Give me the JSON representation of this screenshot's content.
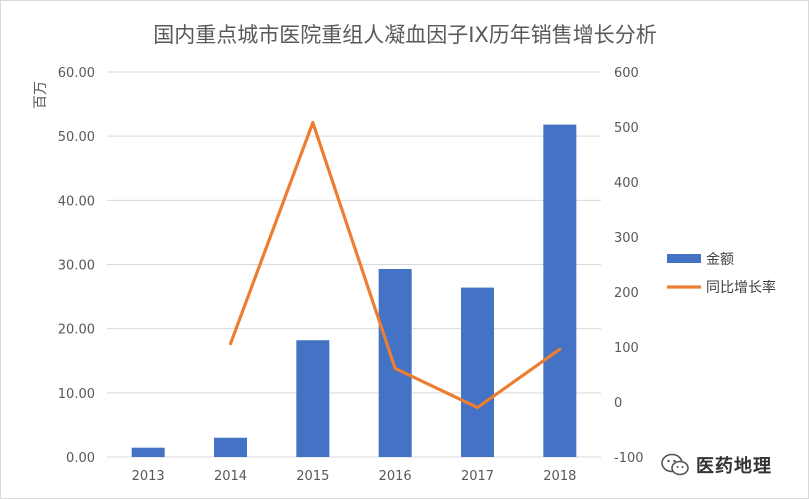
{
  "chart_data": {
    "type": "bar",
    "title": "国内重点城市医院重组人凝血因子IX历年销售增长分析",
    "categories": [
      "2013",
      "2014",
      "2015",
      "2016",
      "2017",
      "2018"
    ],
    "ylabel": "百万",
    "y_ticks": [
      "0.00",
      "10.00",
      "20.00",
      "30.00",
      "40.00",
      "50.00",
      "60.00"
    ],
    "ylim": [
      0,
      60
    ],
    "y2_ticks": [
      "-100",
      "0",
      "100",
      "200",
      "300",
      "400",
      "500",
      "600"
    ],
    "y2lim": [
      -100,
      600
    ],
    "grid": true,
    "legend_position": "right",
    "series": [
      {
        "name": "金额",
        "type": "bar",
        "axis": "left",
        "color": "#4472c4",
        "values": [
          1.45,
          3.0,
          18.2,
          29.3,
          26.4,
          51.8
        ]
      },
      {
        "name": "同比增长率",
        "type": "line",
        "axis": "right",
        "color": "#ed7d31",
        "values": [
          null,
          106,
          508,
          61,
          -10,
          96
        ]
      }
    ]
  },
  "watermark": {
    "text": "医药地理",
    "icon": "wechat-icon"
  }
}
